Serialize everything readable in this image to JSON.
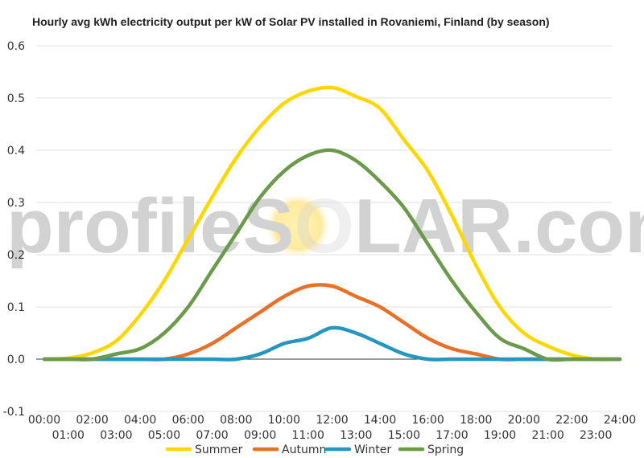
{
  "chart_data": {
    "type": "line",
    "title": "Hourly avg kWh electricity output per kW of Solar PV installed in Rovaniemi, Finland (by season)",
    "xlabel": "",
    "ylabel": "",
    "ylim": [
      -0.1,
      0.6
    ],
    "yticks": [
      "-0.1",
      "0.0",
      "0.1",
      "0.2",
      "0.3",
      "0.4",
      "0.5",
      "0.6"
    ],
    "x": [
      "00:00",
      "01:00",
      "02:00",
      "03:00",
      "04:00",
      "05:00",
      "06:00",
      "07:00",
      "08:00",
      "09:00",
      "10:00",
      "11:00",
      "12:00",
      "13:00",
      "14:00",
      "15:00",
      "16:00",
      "17:00",
      "18:00",
      "19:00",
      "20:00",
      "21:00",
      "22:00",
      "23:00",
      "24:00"
    ],
    "grid": true,
    "legend": "bottom",
    "series": [
      {
        "name": "Summer",
        "color": "#FFD700",
        "values": [
          0,
          0.002,
          0.012,
          0.035,
          0.085,
          0.15,
          0.23,
          0.31,
          0.385,
          0.445,
          0.49,
          0.513,
          0.52,
          0.503,
          0.48,
          0.42,
          0.36,
          0.275,
          0.18,
          0.1,
          0.05,
          0.025,
          0.008,
          0,
          0
        ]
      },
      {
        "name": "Autumn",
        "color": "#E8712A",
        "values": [
          0,
          0,
          0,
          0,
          0,
          0,
          0.01,
          0.03,
          0.06,
          0.09,
          0.12,
          0.14,
          0.14,
          0.12,
          0.1,
          0.07,
          0.04,
          0.02,
          0.01,
          0,
          0,
          0,
          0,
          0,
          0
        ]
      },
      {
        "name": "Winter",
        "color": "#2596BE",
        "values": [
          0,
          0,
          0,
          0,
          0,
          0,
          0,
          0,
          0,
          0.01,
          0.03,
          0.04,
          0.06,
          0.05,
          0.03,
          0.01,
          0,
          0,
          0,
          0,
          0,
          0,
          0,
          0,
          0
        ]
      },
      {
        "name": "Spring",
        "color": "#6A9A4A",
        "values": [
          0,
          0,
          0,
          0.01,
          0.02,
          0.05,
          0.1,
          0.17,
          0.24,
          0.31,
          0.36,
          0.39,
          0.4,
          0.38,
          0.34,
          0.29,
          0.22,
          0.15,
          0.09,
          0.04,
          0.02,
          0,
          0,
          0,
          0
        ]
      }
    ]
  },
  "watermark": {
    "left": "profile",
    "s": "S",
    "o": "O",
    "right": "LAR.com"
  }
}
